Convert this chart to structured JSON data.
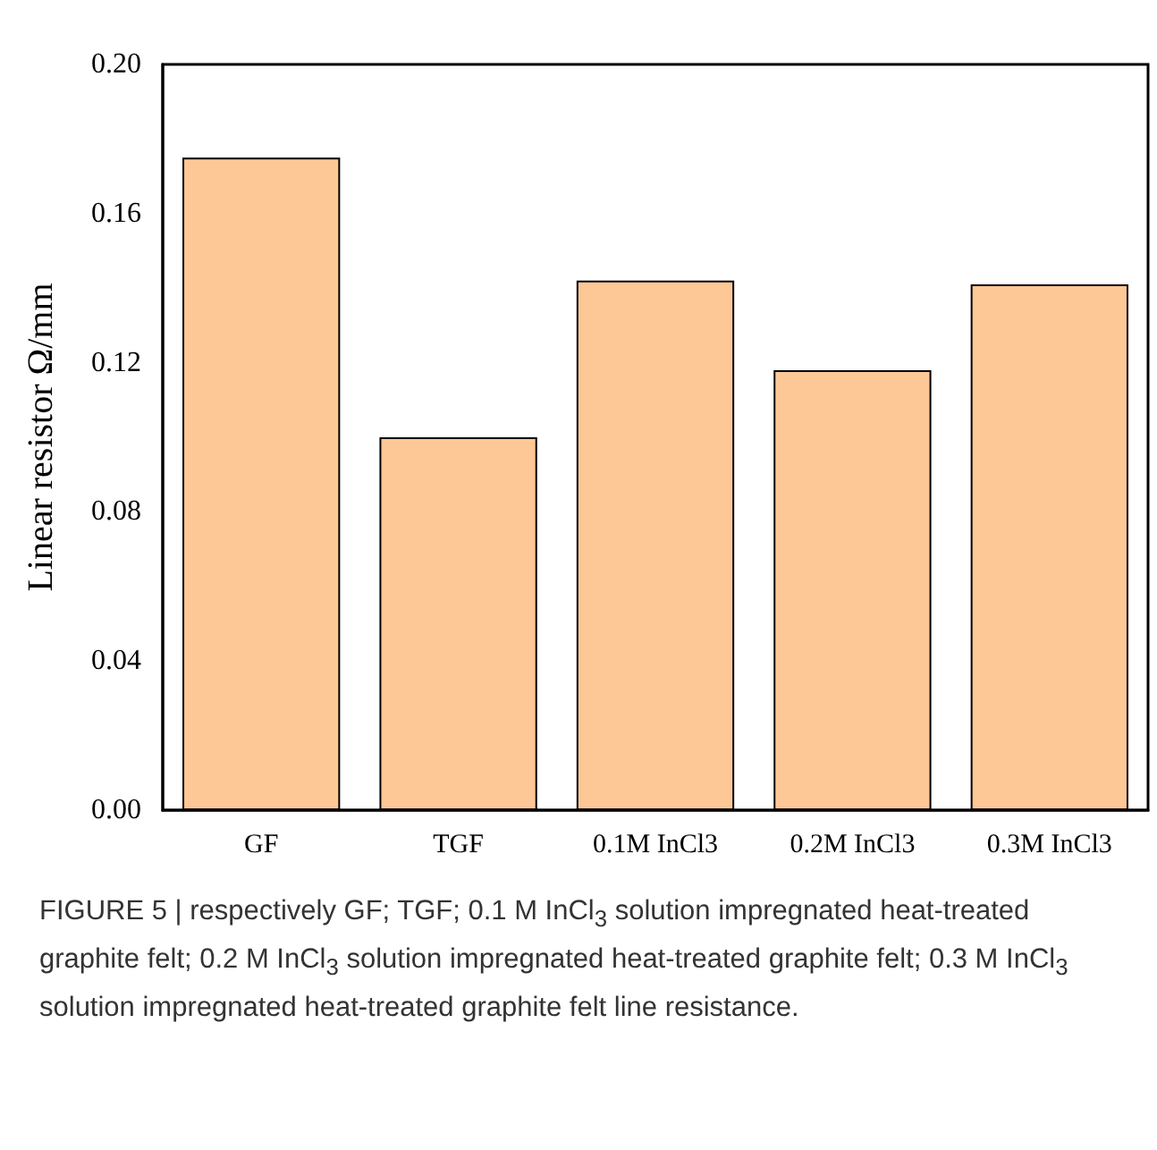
{
  "chart_data": {
    "type": "bar",
    "categories": [
      "GF",
      "TGF",
      "0.1M InCl3",
      "0.2M InCl3",
      "0.3M InCl3"
    ],
    "values": [
      0.175,
      0.1,
      0.142,
      0.118,
      0.141
    ],
    "color": "#fdc796",
    "ylabel": "Linear resistor Ω/mm",
    "ylim": [
      0,
      0.2
    ],
    "yticks": [
      {
        "value": 0,
        "label": "0.00"
      },
      0.04,
      0.08,
      0.12,
      0.16,
      {
        "value": 0.2,
        "label": "0.20"
      }
    ],
    "grid": false,
    "annotations": [
      "FIGURE 5 | respectively GF; TGF; 0.1 M InCl$_{3}$ solution impregnated heat-treated graphite felt; 0.2 M InCl$_{3}$ solution impregnated heat-treated graphite felt; 0.3 M InCl$_{3}$ solution impregnated heat-treated graphite felt line resistance."
    ]
  }
}
